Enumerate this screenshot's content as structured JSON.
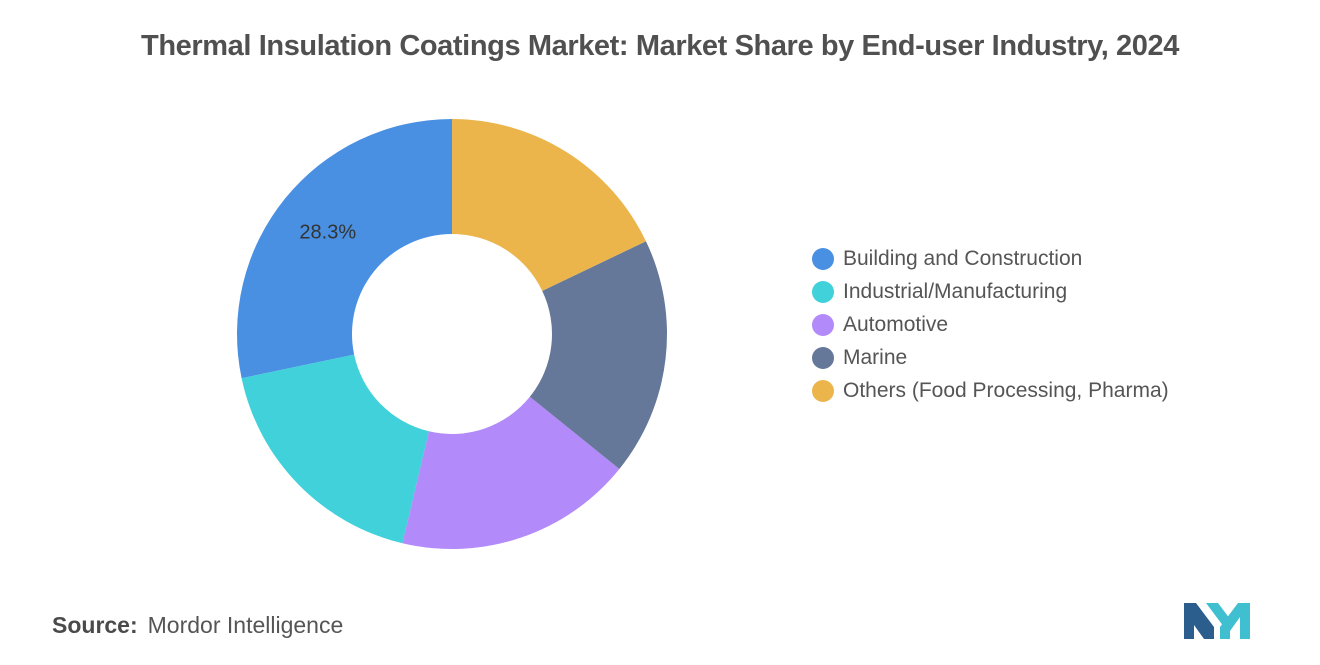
{
  "title": "Thermal Insulation Coatings Market: Market Share by End-user Industry, 2024",
  "chart_data": {
    "type": "pie",
    "donut": true,
    "title": "Thermal Insulation Coatings Market: Market Share by End-user Industry, 2024",
    "categories": [
      "Building and Construction",
      "Industrial/Manufacturing",
      "Automotive",
      "Marine",
      "Others (Food Processing, Pharma)"
    ],
    "values": [
      28.3,
      18.0,
      17.9,
      17.9,
      17.9
    ],
    "colors": [
      "#4a90e2",
      "#40d1da",
      "#b38af9",
      "#65789a",
      "#ebb54c"
    ],
    "data_labels": [
      "28.3%",
      "",
      "",
      "",
      ""
    ],
    "legend_position": "right",
    "start": "top",
    "direction": "counterclockwise"
  },
  "legend": {
    "items": [
      {
        "label": "Building and Construction",
        "color": "#4a90e2"
      },
      {
        "label": "Industrial/Manufacturing",
        "color": "#40d1da"
      },
      {
        "label": "Automotive",
        "color": "#b38af9"
      },
      {
        "label": "Marine",
        "color": "#65789a"
      },
      {
        "label": "Others (Food Processing, Pharma)",
        "color": "#ebb54c"
      }
    ]
  },
  "source": {
    "label": "Source:",
    "text": "Mordor Intelligence"
  },
  "logo": {
    "icon": "mordor-intelligence-logo-icon",
    "colors": [
      "#2b5e8c",
      "#3fbfcf"
    ]
  }
}
